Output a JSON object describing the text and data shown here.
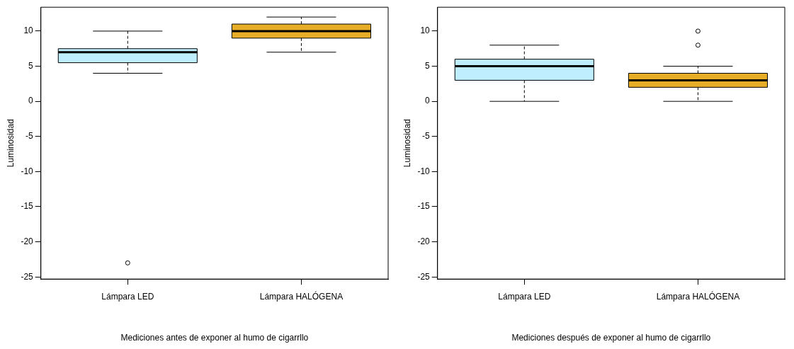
{
  "chart_data": [
    {
      "type": "box",
      "xlabel": "Mediciones antes de exponer al humo de cigarrllo",
      "ylabel": "Luminosidad",
      "categories": [
        "Lámpara LED",
        "Lámpara HALÓGENA"
      ],
      "colors": [
        "#bfefff",
        "#e8ad27"
      ],
      "boxes": [
        {
          "low": 4,
          "q1": 5.5,
          "median": 7,
          "q3": 7.5,
          "high": 10,
          "outliers": [
            -23
          ]
        },
        {
          "low": 7,
          "q1": 9,
          "median": 10,
          "q3": 11,
          "high": 12
        }
      ],
      "ylim": [
        -25.3,
        13.4
      ],
      "yticks": [
        -25,
        -20,
        -15,
        -10,
        -5,
        0,
        5,
        10
      ]
    },
    {
      "type": "box",
      "xlabel": "Mediciones después de exponer al humo de cigarrllo",
      "ylabel": "Luminosidad",
      "categories": [
        "Lámpara LED",
        "Lámpara HALÓGENA"
      ],
      "colors": [
        "#bfefff",
        "#e8ad27"
      ],
      "boxes": [
        {
          "low": 0,
          "q1": 3,
          "median": 5,
          "q3": 6,
          "high": 8
        },
        {
          "low": 0,
          "q1": 2,
          "median": 3,
          "q3": 4,
          "high": 5,
          "outliers": [
            8,
            10
          ]
        }
      ],
      "ylim": [
        -25.3,
        13.4
      ],
      "yticks": [
        -25,
        -20,
        -15,
        -10,
        -5,
        0,
        5,
        10
      ]
    }
  ]
}
